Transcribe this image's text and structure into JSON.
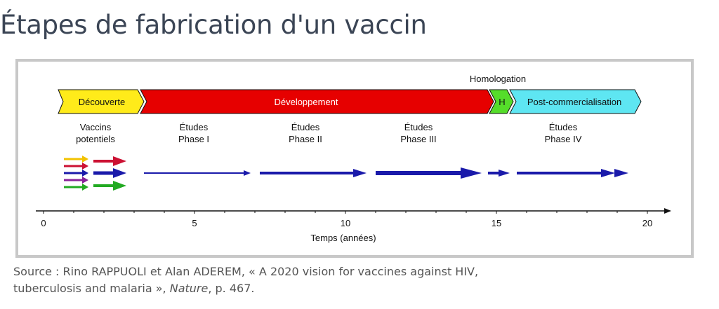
{
  "page": {
    "title": "Étapes de fabrication d'un vaccin"
  },
  "diagram": {
    "homologation_label": "Homologation",
    "bands": [
      {
        "id": "decouverte",
        "label": "Découverte",
        "color": "#ffeb1a"
      },
      {
        "id": "developpement",
        "label": "Développement",
        "color": "#e60000"
      },
      {
        "id": "homologation",
        "label": "H",
        "color": "#55dd2a"
      },
      {
        "id": "post",
        "label": "Post-commercialisation",
        "color": "#5ee6f2"
      }
    ],
    "phases": [
      {
        "line1": "Vaccins",
        "line2": "potentiels"
      },
      {
        "line1": "Études",
        "line2": "Phase I"
      },
      {
        "line1": "Études",
        "line2": "Phase II"
      },
      {
        "line1": "Études",
        "line2": "Phase III"
      },
      {
        "line1": "Études",
        "line2": "Phase IV"
      }
    ],
    "candidate_arrow_colors": [
      "#f2c200",
      "#cc1133",
      "#1a1aaa",
      "#882299",
      "#22aa22"
    ],
    "axis": {
      "label": "Temps (années)",
      "ticks": [
        "0",
        "5",
        "10",
        "15",
        "20"
      ]
    }
  },
  "caption": {
    "text_before": "Source : Rino RAPPUOLI et Alan ADEREM, « A 2020 vision for vaccines against HIV,",
    "text_line2_before": "tuberculosis and malaria », ",
    "journal": "Nature",
    "text_after": ", p. 467."
  }
}
